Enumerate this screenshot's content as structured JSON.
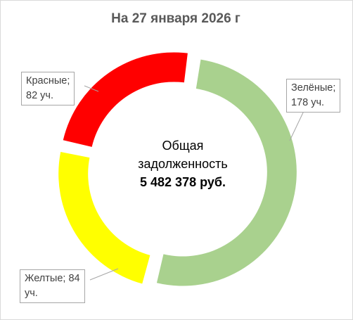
{
  "chart_data": {
    "type": "pie",
    "title": "На 27 января 2026 г",
    "center_text": {
      "line1": "Общая",
      "line2": "задолженность",
      "amount": "5 482 378 руб."
    },
    "categories": [
      "Зелёные",
      "Желтые",
      "Красные"
    ],
    "values": [
      178,
      84,
      82
    ],
    "unit": "уч.",
    "colors": [
      "#a9d18e",
      "#ffff00",
      "#ff0000"
    ],
    "exploded": true,
    "labels": [
      {
        "line1": "Зелёные;",
        "line2": "178 уч."
      },
      {
        "line1": "Желтые; 84",
        "line2": "уч."
      },
      {
        "line1": "Красные;",
        "line2": "82 уч."
      }
    ],
    "legend": "none"
  }
}
